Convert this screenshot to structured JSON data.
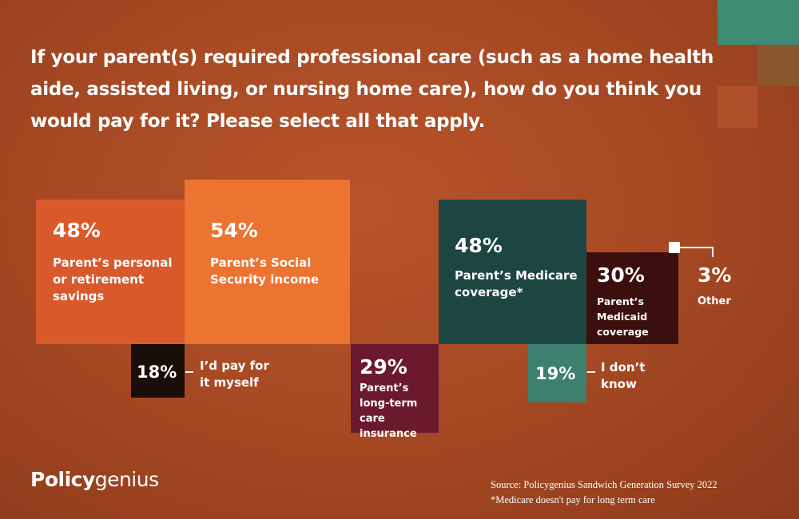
{
  "title": "If your parent(s) required professional care (such as a home health aide, assisted living, or nursing home care), how do you think you would pay for it? Please select all that apply.",
  "colors": {
    "background": "#a84a24",
    "personal_savings": "#d9592b",
    "social_security": "#ec7330",
    "pay_myself": "#1a0e0a",
    "ltc_insurance": "#6b1a2e",
    "medicare": "#1d4541",
    "medicaid": "#3a0f0d",
    "dont_know": "#3d8070",
    "teal_accent": "#3e8c73"
  },
  "chart_data": {
    "type": "bar",
    "items": [
      {
        "key": "personal_savings",
        "value": 48,
        "value_label": "48%",
        "label": "Parent’s personal or retirement savings"
      },
      {
        "key": "social_security",
        "value": 54,
        "value_label": "54%",
        "label": "Parent’s Social Security income"
      },
      {
        "key": "pay_myself",
        "value": 18,
        "value_label": "18%",
        "label": "I’d pay for it myself"
      },
      {
        "key": "ltc_insurance",
        "value": 29,
        "value_label": "29%",
        "label": "Parent’s long-term care insurance"
      },
      {
        "key": "medicare",
        "value": 48,
        "value_label": "48%",
        "label": "Parent’s Medicare coverage*"
      },
      {
        "key": "medicaid",
        "value": 30,
        "value_label": "30%",
        "label": "Parent’s Medicaid coverage"
      },
      {
        "key": "dont_know",
        "value": 19,
        "value_label": "19%",
        "label": "I don’t know"
      },
      {
        "key": "other",
        "value": 3,
        "value_label": "3%",
        "label": "Other"
      }
    ]
  },
  "brand": {
    "bold": "Policy",
    "light": "genius"
  },
  "source": {
    "line1": "Source: Policygenius Sandwich Generation Survey 2022",
    "line2": "*Medicare doesn't pay for long term care"
  }
}
